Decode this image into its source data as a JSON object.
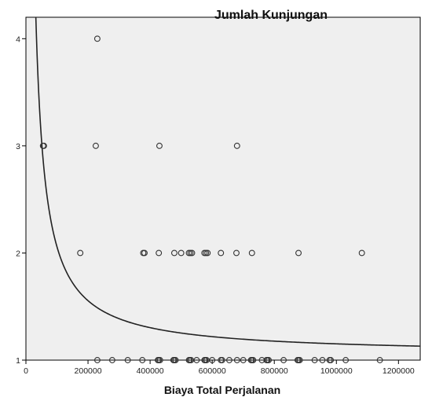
{
  "chart_data": {
    "type": "scatter",
    "title": "Jumlah Kunjungan",
    "xlabel": "Biaya Total Perjalanan",
    "ylabel": "",
    "xlim": [
      0,
      1270000
    ],
    "ylim": [
      1,
      4.2
    ],
    "x_ticks": [
      "0",
      "200000",
      "400000",
      "600000",
      "800000",
      "1000000",
      "1200000"
    ],
    "x_tick_values": [
      0,
      200000,
      400000,
      600000,
      800000,
      1000000,
      1200000
    ],
    "y_ticks": [
      "1",
      "2",
      "3",
      "4"
    ],
    "y_tick_values": [
      1,
      2,
      3,
      4
    ],
    "grid": false,
    "plot_background": "#efefef",
    "marker_color": "#333333",
    "curve_color": "#222222",
    "points": [
      {
        "x": 230000,
        "y": 4
      },
      {
        "x": 55000,
        "y": 3
      },
      {
        "x": 58000,
        "y": 3
      },
      {
        "x": 225000,
        "y": 3
      },
      {
        "x": 430000,
        "y": 3
      },
      {
        "x": 680000,
        "y": 3
      },
      {
        "x": 175000,
        "y": 2
      },
      {
        "x": 378000,
        "y": 2
      },
      {
        "x": 382000,
        "y": 2
      },
      {
        "x": 428000,
        "y": 2
      },
      {
        "x": 478000,
        "y": 2
      },
      {
        "x": 500000,
        "y": 2
      },
      {
        "x": 525000,
        "y": 2
      },
      {
        "x": 530000,
        "y": 2
      },
      {
        "x": 535000,
        "y": 2
      },
      {
        "x": 575000,
        "y": 2
      },
      {
        "x": 580000,
        "y": 2
      },
      {
        "x": 585000,
        "y": 2
      },
      {
        "x": 628000,
        "y": 2
      },
      {
        "x": 678000,
        "y": 2
      },
      {
        "x": 728000,
        "y": 2
      },
      {
        "x": 878000,
        "y": 2
      },
      {
        "x": 1082000,
        "y": 2
      },
      {
        "x": 230000,
        "y": 1
      },
      {
        "x": 278000,
        "y": 1
      },
      {
        "x": 328000,
        "y": 1
      },
      {
        "x": 375000,
        "y": 1
      },
      {
        "x": 425000,
        "y": 1
      },
      {
        "x": 428000,
        "y": 1
      },
      {
        "x": 432000,
        "y": 1
      },
      {
        "x": 475000,
        "y": 1
      },
      {
        "x": 478000,
        "y": 1
      },
      {
        "x": 482000,
        "y": 1
      },
      {
        "x": 525000,
        "y": 1
      },
      {
        "x": 528000,
        "y": 1
      },
      {
        "x": 532000,
        "y": 1
      },
      {
        "x": 550000,
        "y": 1
      },
      {
        "x": 575000,
        "y": 1
      },
      {
        "x": 578000,
        "y": 1
      },
      {
        "x": 582000,
        "y": 1
      },
      {
        "x": 600000,
        "y": 1
      },
      {
        "x": 628000,
        "y": 1
      },
      {
        "x": 632000,
        "y": 1
      },
      {
        "x": 655000,
        "y": 1
      },
      {
        "x": 680000,
        "y": 1
      },
      {
        "x": 700000,
        "y": 1
      },
      {
        "x": 725000,
        "y": 1
      },
      {
        "x": 728000,
        "y": 1
      },
      {
        "x": 732000,
        "y": 1
      },
      {
        "x": 760000,
        "y": 1
      },
      {
        "x": 775000,
        "y": 1
      },
      {
        "x": 778000,
        "y": 1
      },
      {
        "x": 782000,
        "y": 1
      },
      {
        "x": 830000,
        "y": 1
      },
      {
        "x": 875000,
        "y": 1
      },
      {
        "x": 878000,
        "y": 1
      },
      {
        "x": 882000,
        "y": 1
      },
      {
        "x": 930000,
        "y": 1
      },
      {
        "x": 955000,
        "y": 1
      },
      {
        "x": 978000,
        "y": 1
      },
      {
        "x": 982000,
        "y": 1
      },
      {
        "x": 1030000,
        "y": 1
      },
      {
        "x": 1140000,
        "y": 1
      }
    ],
    "fit_curve": {
      "type": "inverse",
      "equation": "y = 1.0513 + 100700 / x",
      "intercept": 1.0513,
      "coefficient": 100700
    }
  }
}
